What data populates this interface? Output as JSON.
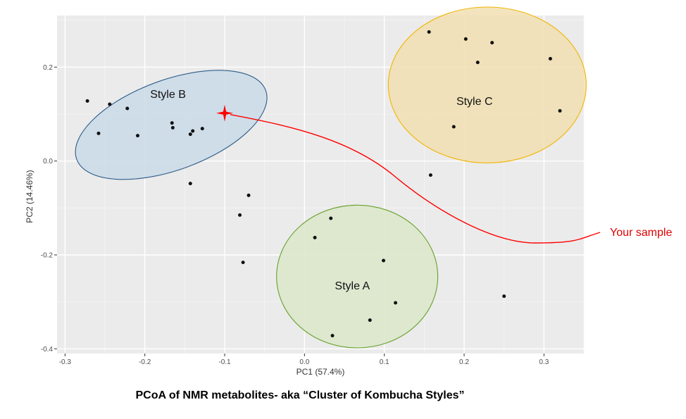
{
  "caption": "PCoA of NMR metabolites- aka “Cluster of Kombucha Styles”",
  "chart_data": {
    "type": "scatter",
    "xlabel": "PC1 (57.4%)",
    "ylabel": "PC2 (14.46%)",
    "xlim": [
      -0.31,
      0.35
    ],
    "ylim": [
      -0.41,
      0.31
    ],
    "x_ticks": [
      -0.3,
      -0.2,
      -0.1,
      0.0,
      0.1,
      0.2,
      0.3
    ],
    "x_tick_labels": [
      "-0.3",
      "-0.2",
      "-0.1",
      "0.0",
      "0.1",
      "0.2",
      "0.3"
    ],
    "y_ticks": [
      -0.4,
      -0.2,
      0.0,
      0.2
    ],
    "y_tick_labels": [
      "-0.4",
      "-0.2",
      "0.0",
      "0.2"
    ],
    "grid": true,
    "points": [
      {
        "x": -0.272,
        "y": 0.128
      },
      {
        "x": -0.244,
        "y": 0.121
      },
      {
        "x": -0.222,
        "y": 0.112
      },
      {
        "x": -0.258,
        "y": 0.059
      },
      {
        "x": -0.209,
        "y": 0.054
      },
      {
        "x": -0.166,
        "y": 0.081
      },
      {
        "x": -0.165,
        "y": 0.071
      },
      {
        "x": -0.14,
        "y": 0.064
      },
      {
        "x": -0.143,
        "y": 0.057
      },
      {
        "x": -0.128,
        "y": 0.069
      },
      {
        "x": -0.143,
        "y": -0.048
      },
      {
        "x": -0.07,
        "y": -0.073
      },
      {
        "x": -0.081,
        "y": -0.115
      },
      {
        "x": -0.077,
        "y": -0.216
      },
      {
        "x": 0.033,
        "y": -0.122
      },
      {
        "x": 0.013,
        "y": -0.163
      },
      {
        "x": 0.099,
        "y": -0.212
      },
      {
        "x": 0.114,
        "y": -0.302
      },
      {
        "x": 0.082,
        "y": -0.339
      },
      {
        "x": 0.035,
        "y": -0.372
      },
      {
        "x": 0.156,
        "y": 0.275
      },
      {
        "x": 0.202,
        "y": 0.26
      },
      {
        "x": 0.235,
        "y": 0.252
      },
      {
        "x": 0.217,
        "y": 0.21
      },
      {
        "x": 0.308,
        "y": 0.218
      },
      {
        "x": 0.32,
        "y": 0.107
      },
      {
        "x": 0.187,
        "y": 0.073
      },
      {
        "x": 0.158,
        "y": -0.03
      },
      {
        "x": 0.25,
        "y": -0.288
      }
    ],
    "clusters": [
      {
        "label": "Style B",
        "cx": -0.167,
        "cy": 0.077,
        "rx": 0.126,
        "ry": 0.096,
        "angle": -20,
        "fill": "#c8d9e6",
        "stroke": "#2e5c8a",
        "label_x": -0.171,
        "label_y": 0.142
      },
      {
        "label": "Style C",
        "cx": 0.229,
        "cy": 0.162,
        "rx": 0.124,
        "ry": 0.166,
        "angle": 0,
        "fill": "#f0deae",
        "stroke": "#f2b500",
        "label_x": 0.213,
        "label_y": 0.127
      },
      {
        "label": "Style A",
        "cx": 0.066,
        "cy": -0.246,
        "rx": 0.101,
        "ry": 0.152,
        "angle": 0,
        "fill": "#d9e6c8",
        "stroke": "#6aa12e",
        "label_x": 0.06,
        "label_y": -0.266
      }
    ],
    "marker": {
      "x": -0.1,
      "y": 0.102,
      "color": "#ff0000"
    },
    "annotation": {
      "text": "Your sample",
      "color": "#e00000"
    }
  }
}
